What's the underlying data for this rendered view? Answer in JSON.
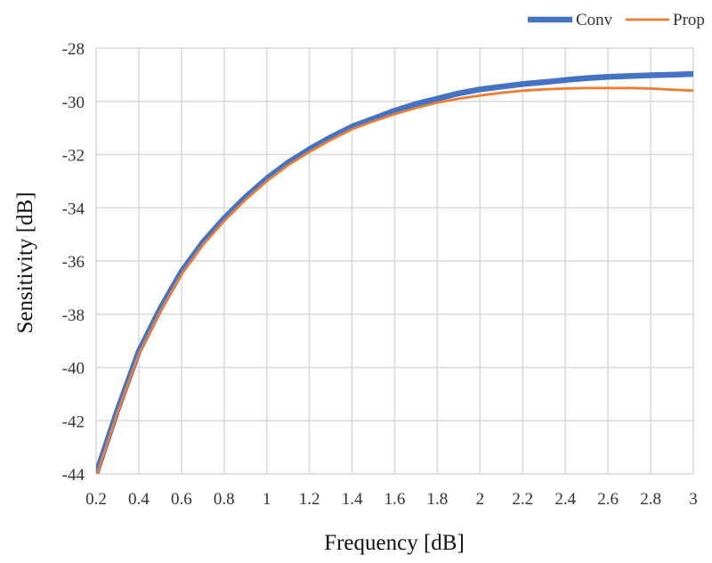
{
  "chart_data": {
    "type": "line",
    "title": "",
    "xlabel": "Frequency [dB]",
    "ylabel": "Sensitivity [dB]",
    "xlim": [
      0.2,
      3.0
    ],
    "ylim": [
      -44,
      -28
    ],
    "grid": true,
    "legend_position": "top-right",
    "x_ticks": [
      "0.2",
      "0.4",
      "0.6",
      "0.8",
      "1",
      "1.2",
      "1.4",
      "1.6",
      "1.8",
      "2",
      "2.2",
      "2.4",
      "2.6",
      "2.8",
      "3"
    ],
    "y_ticks": [
      "-28",
      "-30",
      "-32",
      "-34",
      "-36",
      "-38",
      "-40",
      "-42",
      "-44"
    ],
    "x": [
      0.2,
      0.3,
      0.4,
      0.5,
      0.6,
      0.7,
      0.8,
      0.9,
      1.0,
      1.1,
      1.2,
      1.3,
      1.4,
      1.5,
      1.6,
      1.7,
      1.8,
      1.9,
      2.0,
      2.1,
      2.2,
      2.3,
      2.4,
      2.5,
      2.6,
      2.7,
      2.8,
      2.9,
      3.0
    ],
    "series": [
      {
        "name": "Conv",
        "color": "#4472C4",
        "values": [
          -44.0,
          -41.6,
          -39.4,
          -37.8,
          -36.4,
          -35.3,
          -34.4,
          -33.6,
          -32.9,
          -32.3,
          -31.8,
          -31.35,
          -30.95,
          -30.65,
          -30.35,
          -30.1,
          -29.9,
          -29.7,
          -29.55,
          -29.45,
          -29.35,
          -29.28,
          -29.2,
          -29.13,
          -29.08,
          -29.05,
          -29.02,
          -29.0,
          -28.97
        ]
      },
      {
        "name": "Prop",
        "color": "#ED7D31",
        "values": [
          -44.1,
          -41.7,
          -39.5,
          -37.9,
          -36.5,
          -35.4,
          -34.5,
          -33.7,
          -33.0,
          -32.4,
          -31.9,
          -31.45,
          -31.05,
          -30.75,
          -30.48,
          -30.25,
          -30.05,
          -29.9,
          -29.78,
          -29.68,
          -29.6,
          -29.55,
          -29.52,
          -29.5,
          -29.5,
          -29.5,
          -29.52,
          -29.56,
          -29.6
        ]
      }
    ]
  }
}
